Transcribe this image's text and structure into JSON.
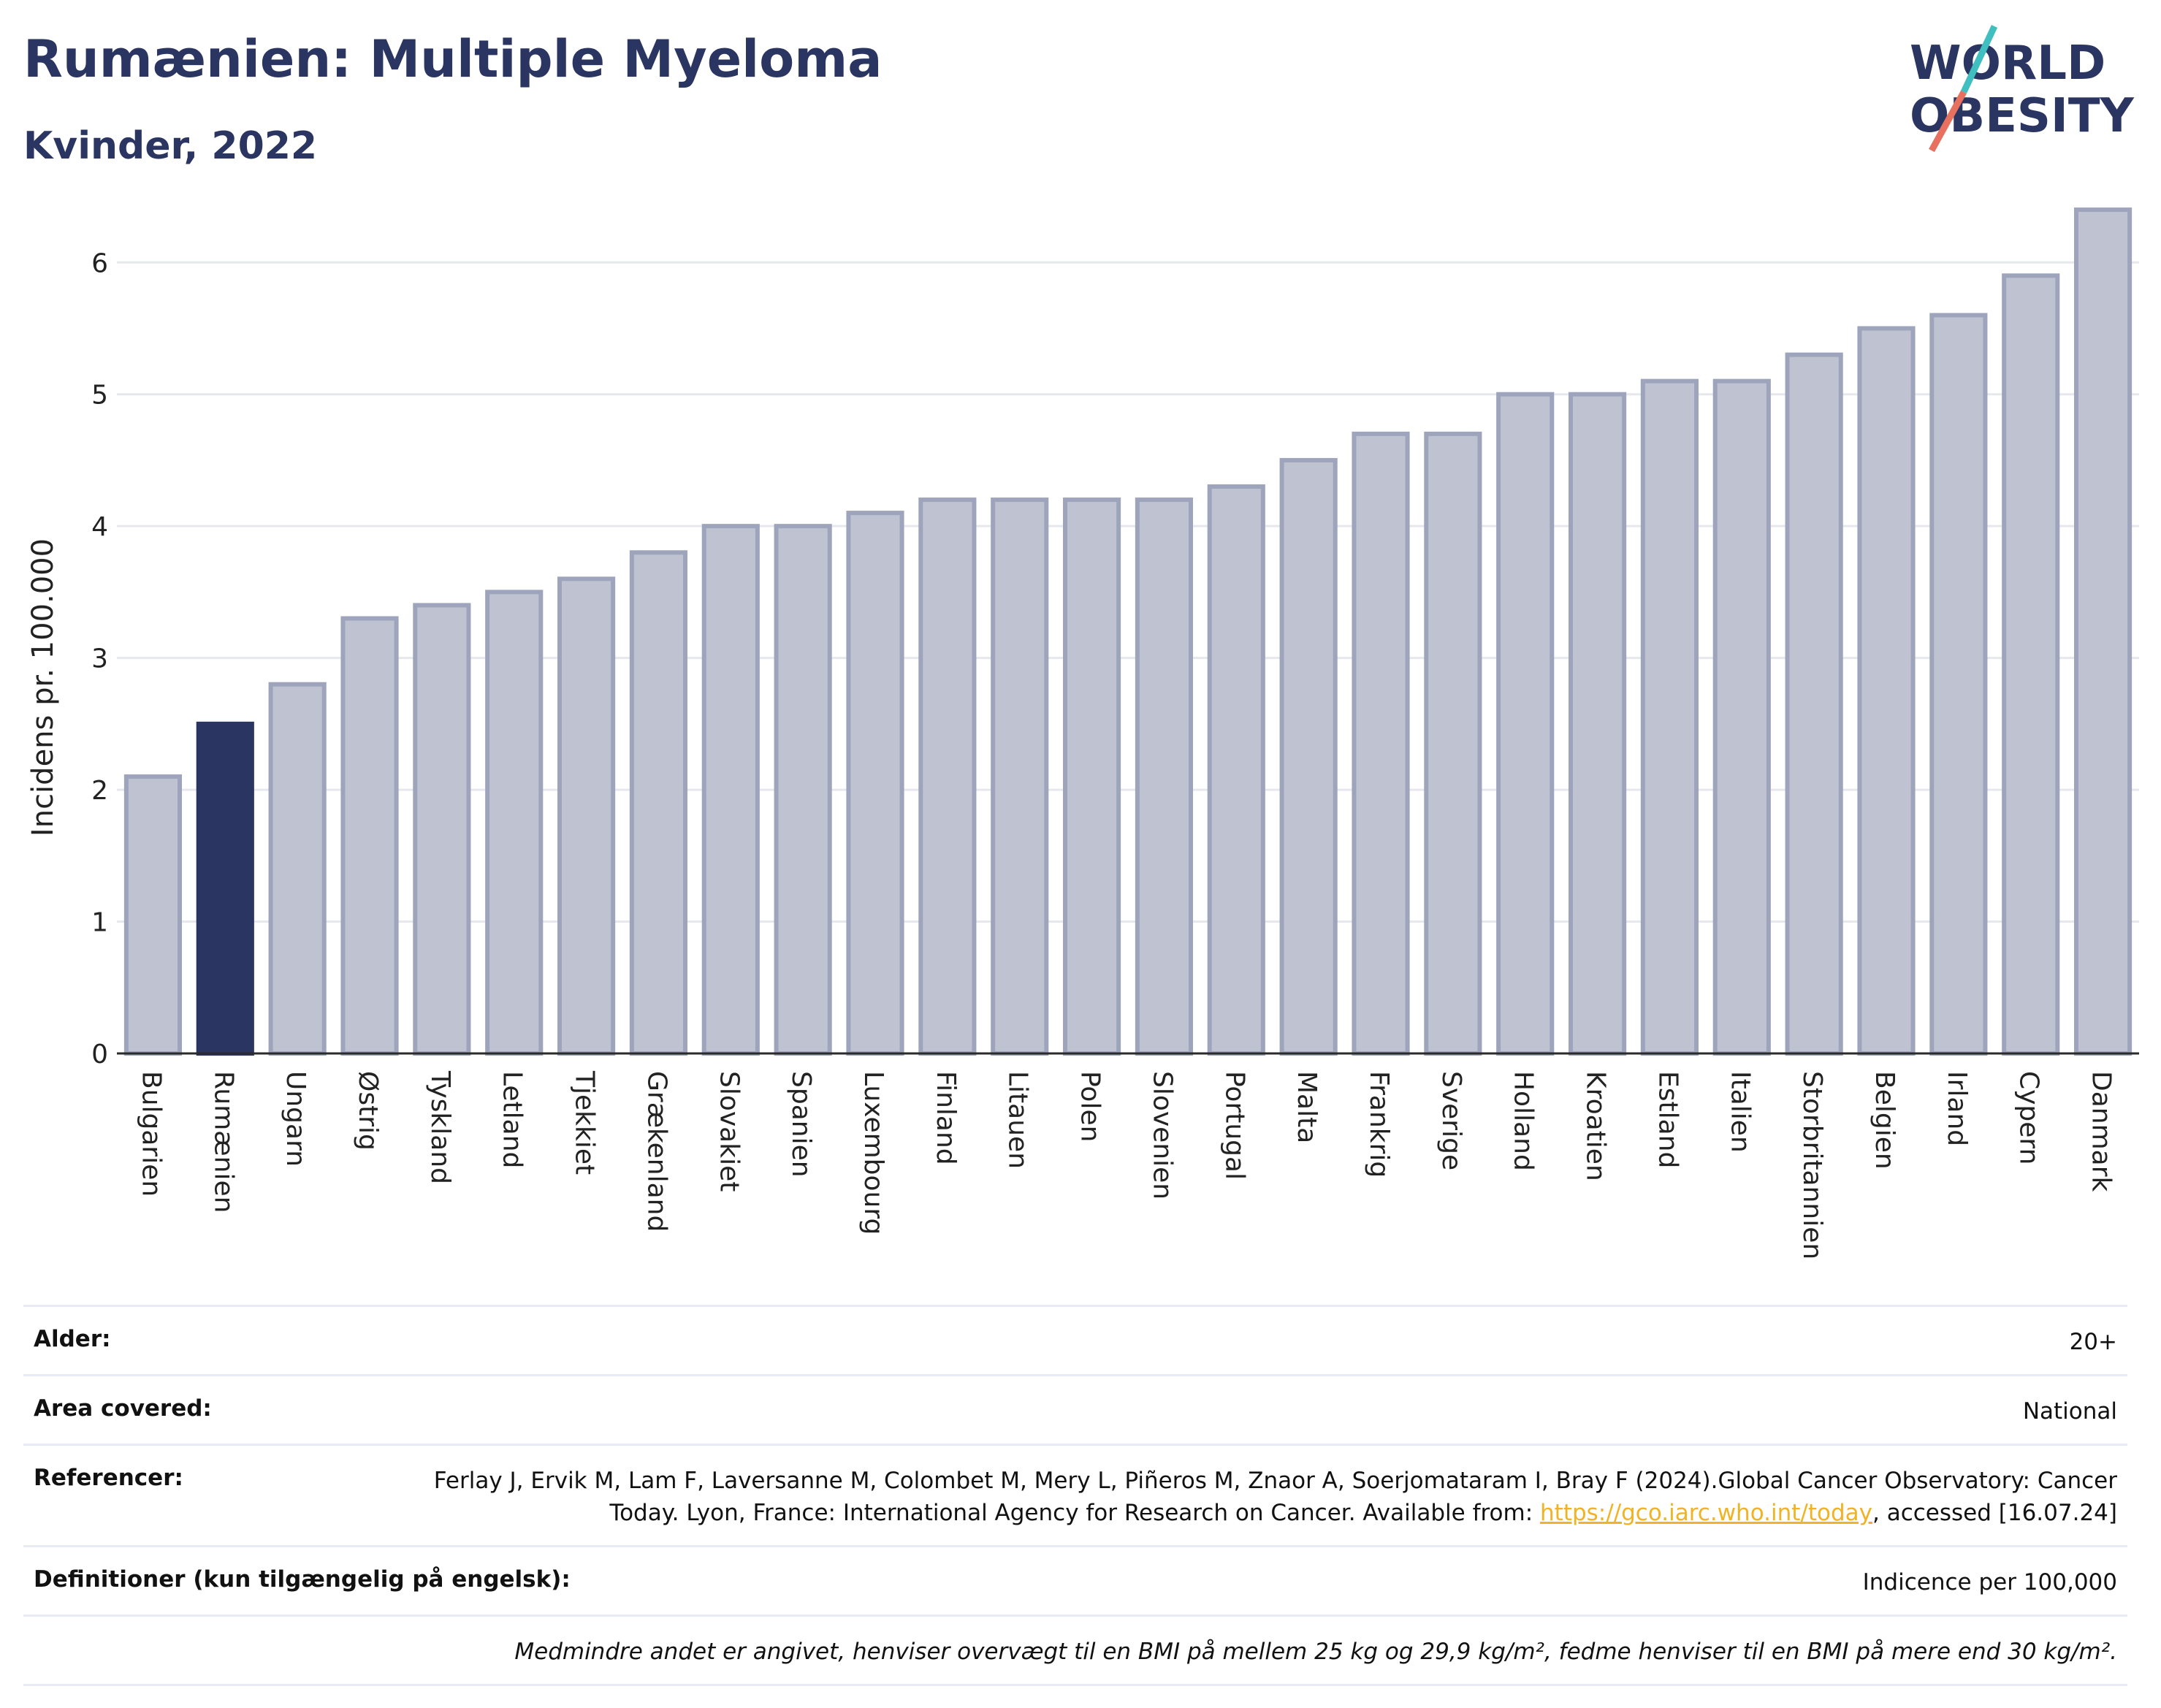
{
  "header": {
    "title": "Rumænien: Multiple Myeloma",
    "subtitle": "Kvinder, 2022"
  },
  "logo": {
    "line1": "WORLD",
    "line2": "OBESITY"
  },
  "colors": {
    "highlight": "#2b3561",
    "bar_fill": "#bfc3d1",
    "bar_stroke": "#9ea4bb",
    "grid": "#e6e8ee",
    "axis": "#2b2b2b",
    "logo_teal": "#3fbfbf",
    "logo_coral": "#e8705f",
    "link": "#f0b323"
  },
  "chart_data": {
    "type": "bar",
    "ylabel": "Incidens pr. 100.000",
    "xlabel": "",
    "ylim": [
      0,
      6.55
    ],
    "yticks": [
      0,
      1,
      2,
      3,
      4,
      5,
      6
    ],
    "grid": true,
    "highlight": "Rumænien",
    "categories": [
      "Bulgarien",
      "Rumænien",
      "Ungarn",
      "Østrig",
      "Tyskland",
      "Letland",
      "Tjekkiet",
      "Grækenland",
      "Slovakiet",
      "Spanien",
      "Luxembourg",
      "Finland",
      "Litauen",
      "Polen",
      "Slovenien",
      "Portugal",
      "Malta",
      "Frankrig",
      "Sverige",
      "Holland",
      "Kroatien",
      "Estland",
      "Italien",
      "Storbritannien",
      "Belgien",
      "Irland",
      "Cypern",
      "Danmark"
    ],
    "values": [
      2.1,
      2.5,
      2.8,
      3.3,
      3.4,
      3.5,
      3.6,
      3.8,
      4.0,
      4.0,
      4.1,
      4.2,
      4.2,
      4.2,
      4.2,
      4.3,
      4.5,
      4.7,
      4.7,
      5.0,
      5.0,
      5.1,
      5.1,
      5.3,
      5.5,
      5.6,
      5.9,
      6.4
    ]
  },
  "meta": {
    "age_label": "Alder:",
    "age_value": "20+",
    "area_label": "Area covered:",
    "area_value": "National",
    "ref_label": "Referencer:",
    "ref_text": "Ferlay J, Ervik M, Lam F, Laversanne M, Colombet M, Mery L, Piñeros M, Znaor A, Soerjomataram I, Bray F (2024).Global Cancer Observatory: Cancer Today. Lyon, France: International Agency for Research on Cancer. Available from:",
    "ref_link": "https://gco.iarc.who.int/today",
    "ref_tail": ", accessed [16.07.24]",
    "def_label": "Definitioner (kun tilgængelig på engelsk):",
    "def_value": "Indicence per 100,000",
    "note": "Medmindre andet er angivet, henviser overvægt til en BMI på mellem 25 kg og 29,9 kg/m², fedme henviser til en BMI på mere end 30 kg/m²."
  }
}
